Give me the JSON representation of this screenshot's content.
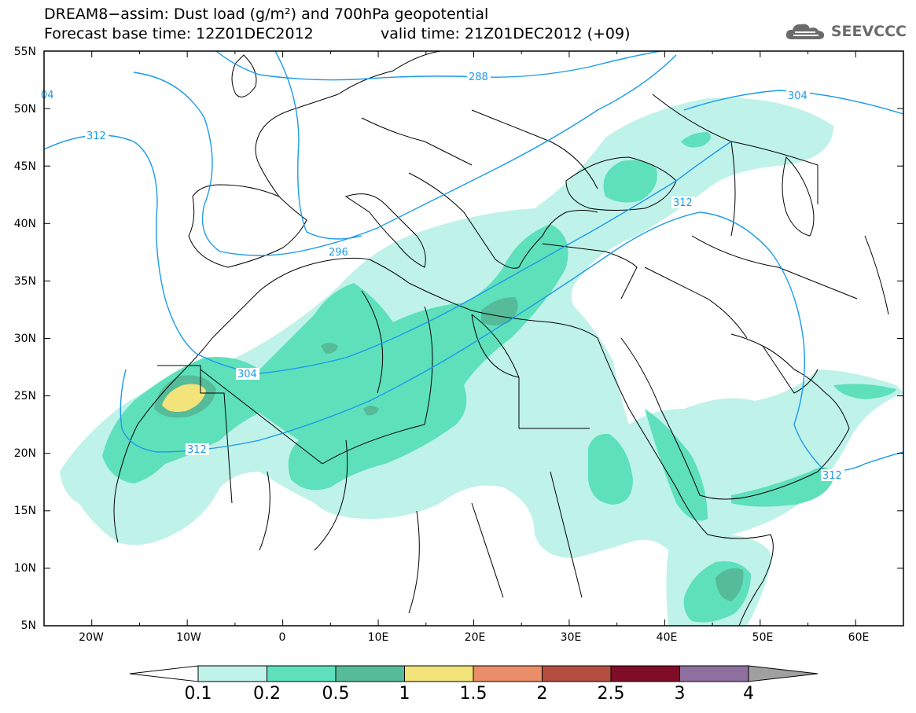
{
  "header": {
    "title_line1": "DREAM8−assim: Dust load (g/m²) and 700hPa geopotential",
    "forecast_base": "Forecast base time: 12Z01DEC2012",
    "valid_time": "valid time: 21Z01DEC2012 (+09)"
  },
  "logo": {
    "text": "SEEVCCC",
    "icon": "cloud-logo-icon",
    "color": "#6b6b6b"
  },
  "map": {
    "lon_labels": [
      "20W",
      "10W",
      "0",
      "10E",
      "20E",
      "30E",
      "40E",
      "50E",
      "60E"
    ],
    "lat_labels": [
      "55N",
      "50N",
      "45N",
      "40N",
      "35N",
      "30N",
      "25N",
      "20N",
      "15N",
      "10N",
      "5N"
    ],
    "contour_labels": [
      "04",
      "312",
      "288",
      "304",
      "312",
      "296",
      "304",
      "312",
      "312"
    ],
    "colors": {
      "contour": "#1b9bea",
      "coast": "#000000",
      "land_bg": "#ffffff"
    }
  },
  "colorbar": {
    "labels": [
      "0.1",
      "0.2",
      "0.5",
      "1",
      "1.5",
      "2",
      "2.5",
      "3",
      "4"
    ],
    "colors": [
      "#ffffff",
      "#bff2e9",
      "#5ee0bb",
      "#56bb98",
      "#f2e37a",
      "#e98e68",
      "#b44e40",
      "#800d27",
      "#8f6fa0",
      "#a0a0a0"
    ]
  }
}
